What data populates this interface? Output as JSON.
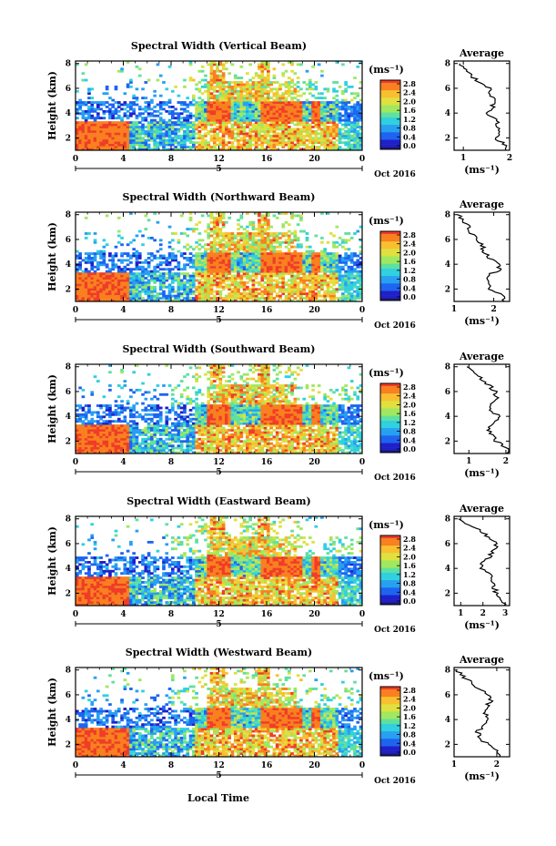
{
  "figure": {
    "xlabel_bottom": "Local Time",
    "date_label": "Oct 2016",
    "colorbar_ticks": [
      "2.8",
      "2.4",
      "2.0",
      "1.6",
      "1.2",
      "0.8",
      "0.4",
      "0.0"
    ],
    "colorbar_unit": "(ms⁻¹)",
    "avg_title": "Average",
    "avg_unit": "(ms⁻¹)",
    "ylabel": "Height (km)",
    "colors": {
      "scale": [
        "#1a1a6e",
        "#2020c8",
        "#1e64f0",
        "#28a0f0",
        "#30d0e0",
        "#60e0a0",
        "#a0e860",
        "#e0e040",
        "#f8c030",
        "#f88020",
        "#f03c28"
      ]
    }
  },
  "chart_data": [
    {
      "type": "heatmap",
      "title": "Spectral Width (Vertical Beam)",
      "xlabel": "Local Time",
      "ylabel": "Height (km)",
      "x_ticks": [
        "0",
        "4",
        "8",
        "12",
        "16",
        "20",
        "0"
      ],
      "x_day_label": "5",
      "y_ticks": [
        "2",
        "4",
        "6",
        "8"
      ],
      "xlim": [
        0,
        24
      ],
      "ylim": [
        1,
        8.2
      ],
      "colorbar": {
        "label": "(ms⁻¹)",
        "range": [
          0.0,
          2.8
        ]
      },
      "average": {
        "title": "Average",
        "xlabel": "(ms⁻¹)",
        "x_ticks": [
          "1",
          "2"
        ],
        "xlim": [
          0.8,
          2.0
        ],
        "y_ticks": [
          "2",
          "4",
          "6",
          "8"
        ],
        "ylim": [
          1,
          8.2
        ],
        "height": [
          1.0,
          1.5,
          2.0,
          2.5,
          3.0,
          3.5,
          4.0,
          4.5,
          5.0,
          5.5,
          6.0,
          6.5,
          7.0,
          7.5,
          8.0
        ],
        "value": [
          1.95,
          1.9,
          1.7,
          1.8,
          1.75,
          1.72,
          1.5,
          1.62,
          1.7,
          1.55,
          1.6,
          1.35,
          1.15,
          1.05,
          0.92
        ]
      }
    },
    {
      "type": "heatmap",
      "title": "Spectral Width (Northward Beam)",
      "xlabel": "Local Time",
      "ylabel": "Height (km)",
      "x_ticks": [
        "0",
        "4",
        "8",
        "12",
        "16",
        "20",
        "0"
      ],
      "x_day_label": "5",
      "y_ticks": [
        "2",
        "4",
        "6",
        "8"
      ],
      "xlim": [
        0,
        24
      ],
      "ylim": [
        1,
        8.2
      ],
      "colorbar": {
        "label": "(ms⁻¹)",
        "range": [
          0.0,
          2.8
        ]
      },
      "average": {
        "title": "Average",
        "xlabel": "(ms⁻¹)",
        "x_ticks": [
          "1",
          "2"
        ],
        "xlim": [
          1.0,
          2.4
        ],
        "y_ticks": [
          "2",
          "4",
          "6",
          "8"
        ],
        "ylim": [
          1,
          8.2
        ],
        "height": [
          1.0,
          1.5,
          2.0,
          2.5,
          3.0,
          3.5,
          4.0,
          4.5,
          5.0,
          5.5,
          6.0,
          6.5,
          7.0,
          7.5,
          8.0
        ],
        "value": [
          2.3,
          2.2,
          1.9,
          1.85,
          1.8,
          2.1,
          2.2,
          1.9,
          1.75,
          1.7,
          1.6,
          1.45,
          1.35,
          1.25,
          1.08
        ]
      }
    },
    {
      "type": "heatmap",
      "title": "Spectral Width (Southward Beam)",
      "xlabel": "Local Time",
      "ylabel": "Height (km)",
      "x_ticks": [
        "0",
        "4",
        "8",
        "12",
        "16",
        "20",
        "0"
      ],
      "x_day_label": "5",
      "y_ticks": [
        "2",
        "4",
        "6",
        "8"
      ],
      "xlim": [
        0,
        24
      ],
      "ylim": [
        1,
        8.2
      ],
      "colorbar": {
        "label": "(ms⁻¹)",
        "range": [
          0.0,
          2.8
        ]
      },
      "average": {
        "title": "Average",
        "xlabel": "(ms⁻¹)",
        "x_ticks": [
          "1",
          "2"
        ],
        "xlim": [
          0.6,
          2.1
        ],
        "y_ticks": [
          "2",
          "4",
          "6",
          "8"
        ],
        "ylim": [
          1,
          8.2
        ],
        "height": [
          1.0,
          1.5,
          2.0,
          2.5,
          3.0,
          3.5,
          4.0,
          4.5,
          5.0,
          5.5,
          6.0,
          6.5,
          7.0,
          7.5,
          8.0
        ],
        "value": [
          2.05,
          2.0,
          1.75,
          1.6,
          1.55,
          1.7,
          1.8,
          1.6,
          1.65,
          1.75,
          1.7,
          1.55,
          1.35,
          1.1,
          0.95
        ]
      }
    },
    {
      "type": "heatmap",
      "title": "Spectral Width (Eastward Beam)",
      "xlabel": "Local Time",
      "ylabel": "Height (km)",
      "x_ticks": [
        "0",
        "4",
        "8",
        "12",
        "16",
        "20",
        "0"
      ],
      "x_day_label": "5",
      "y_ticks": [
        "2",
        "4",
        "6",
        "8"
      ],
      "xlim": [
        0,
        24
      ],
      "ylim": [
        1,
        8.2
      ],
      "colorbar": {
        "label": "(ms⁻¹)",
        "range": [
          0.0,
          2.8
        ]
      },
      "average": {
        "title": "Average",
        "xlabel": "(ms⁻¹)",
        "x_ticks": [
          "1",
          "2",
          "3"
        ],
        "xlim": [
          0.7,
          3.2
        ],
        "y_ticks": [
          "2",
          "4",
          "6",
          "8"
        ],
        "ylim": [
          1,
          8.2
        ],
        "height": [
          1.0,
          1.5,
          2.0,
          2.5,
          3.0,
          3.5,
          4.0,
          4.5,
          5.0,
          5.5,
          6.0,
          6.5,
          7.0,
          7.5,
          8.0
        ],
        "value": [
          3.0,
          2.9,
          2.6,
          2.5,
          2.4,
          2.3,
          1.9,
          2.0,
          2.3,
          2.5,
          2.6,
          2.3,
          1.9,
          1.4,
          0.9
        ]
      }
    },
    {
      "type": "heatmap",
      "title": "Spectral Width (Westward Beam)",
      "xlabel": "Local Time",
      "ylabel": "Height (km)",
      "x_ticks": [
        "0",
        "4",
        "8",
        "12",
        "16",
        "20",
        "0"
      ],
      "x_day_label": "5",
      "y_ticks": [
        "2",
        "4",
        "6",
        "8"
      ],
      "xlim": [
        0,
        24
      ],
      "ylim": [
        1,
        8.2
      ],
      "colorbar": {
        "label": "(ms⁻¹)",
        "range": [
          0.0,
          2.8
        ]
      },
      "average": {
        "title": "Average",
        "xlabel": "(ms⁻¹)",
        "x_ticks": [
          "1",
          "2"
        ],
        "xlim": [
          1.0,
          2.3
        ],
        "y_ticks": [
          "2",
          "4",
          "6",
          "8"
        ],
        "ylim": [
          1,
          8.2
        ],
        "height": [
          1.0,
          1.5,
          2.0,
          2.5,
          3.0,
          3.5,
          4.0,
          4.5,
          5.0,
          5.5,
          6.0,
          6.5,
          7.0,
          7.5,
          8.0
        ],
        "value": [
          2.1,
          2.0,
          1.8,
          1.6,
          1.55,
          1.7,
          1.85,
          1.7,
          1.75,
          1.85,
          1.8,
          1.6,
          1.4,
          1.2,
          1.05
        ]
      }
    }
  ]
}
